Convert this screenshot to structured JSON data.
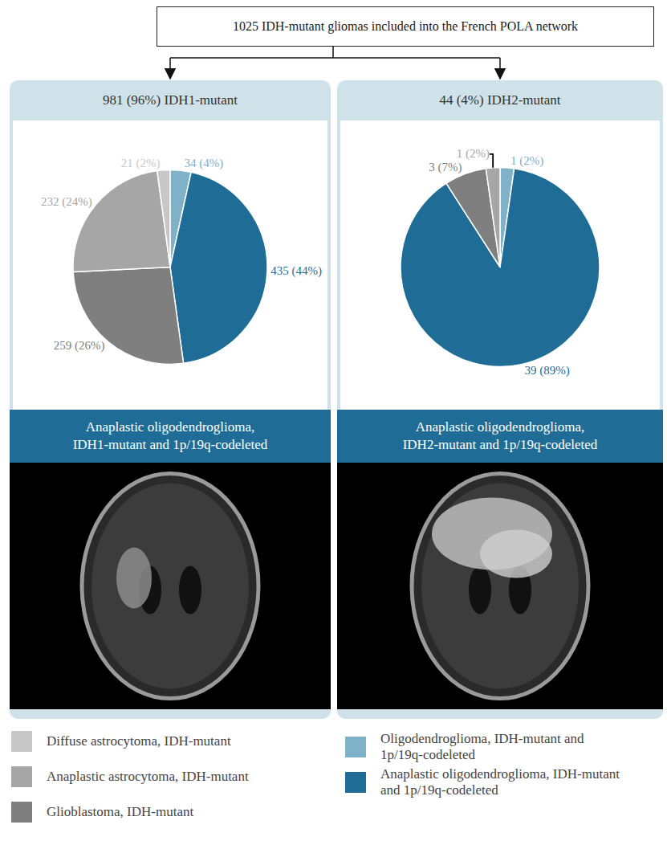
{
  "header": "1025 IDH-mutant gliomas included into the French POLA network",
  "chart_data": [
    {
      "type": "pie",
      "title": "981 (96%) IDH1-mutant",
      "subtitle": "Anaplastic oligodendroglioma, IDH1-mutant and 1p/19q-codeleted",
      "categories": [
        "Oligodendroglioma, IDH-mutant and 1p/19q-codeleted",
        "Anaplastic oligodendroglioma, IDH-mutant and 1p/19q-codeleted",
        "Glioblastoma, IDH-mutant",
        "Anaplastic astrocytoma, IDH-mutant",
        "Diffuse astrocytoma, IDH-mutant"
      ],
      "values": [
        34,
        435,
        259,
        232,
        21
      ],
      "value_labels": [
        "34 (4%)",
        "435 (44%)",
        "259 (26%)",
        "232 (24%)",
        "21 (2%)"
      ],
      "colors": [
        "#7fb1c9",
        "#1f6d96",
        "#7f7f7f",
        "#a6a6a6",
        "#c8c8c8"
      ],
      "data_labels": true
    },
    {
      "type": "pie",
      "title": "44 (4%) IDH2-mutant",
      "subtitle": "Anaplastic oligodendroglioma, IDH2-mutant and 1p/19q-codeleted",
      "categories": [
        "Oligodendroglioma, IDH-mutant and 1p/19q-codeleted",
        "Anaplastic oligodendroglioma, IDH-mutant and 1p/19q-codeleted",
        "Glioblastoma, IDH-mutant",
        "Anaplastic astrocytoma, IDH-mutant"
      ],
      "values": [
        1,
        39,
        3,
        1
      ],
      "value_labels": [
        "1 (2%)",
        "39 (89%)",
        "3 (7%)",
        "1 (2%)"
      ],
      "colors": [
        "#7fb1c9",
        "#1f6d96",
        "#7f7f7f",
        "#a6a6a6"
      ],
      "data_labels": true
    }
  ],
  "legend_items": [
    {
      "label": "Diffuse astrocytoma, IDH-mutant",
      "color": "#c8c8c8"
    },
    {
      "label": "Anaplastic astrocytoma, IDH-mutant",
      "color": "#a6a6a6"
    },
    {
      "label": "Glioblastoma, IDH-mutant",
      "color": "#7f7f7f"
    },
    {
      "label": "Oligodendroglioma, IDH-mutant and 1p/19q-codeleted",
      "color": "#7fb1c9"
    },
    {
      "label": "Anaplastic oligodendroglioma, IDH-mutant and 1p/19q-codeleted",
      "color": "#1f6d96"
    }
  ]
}
